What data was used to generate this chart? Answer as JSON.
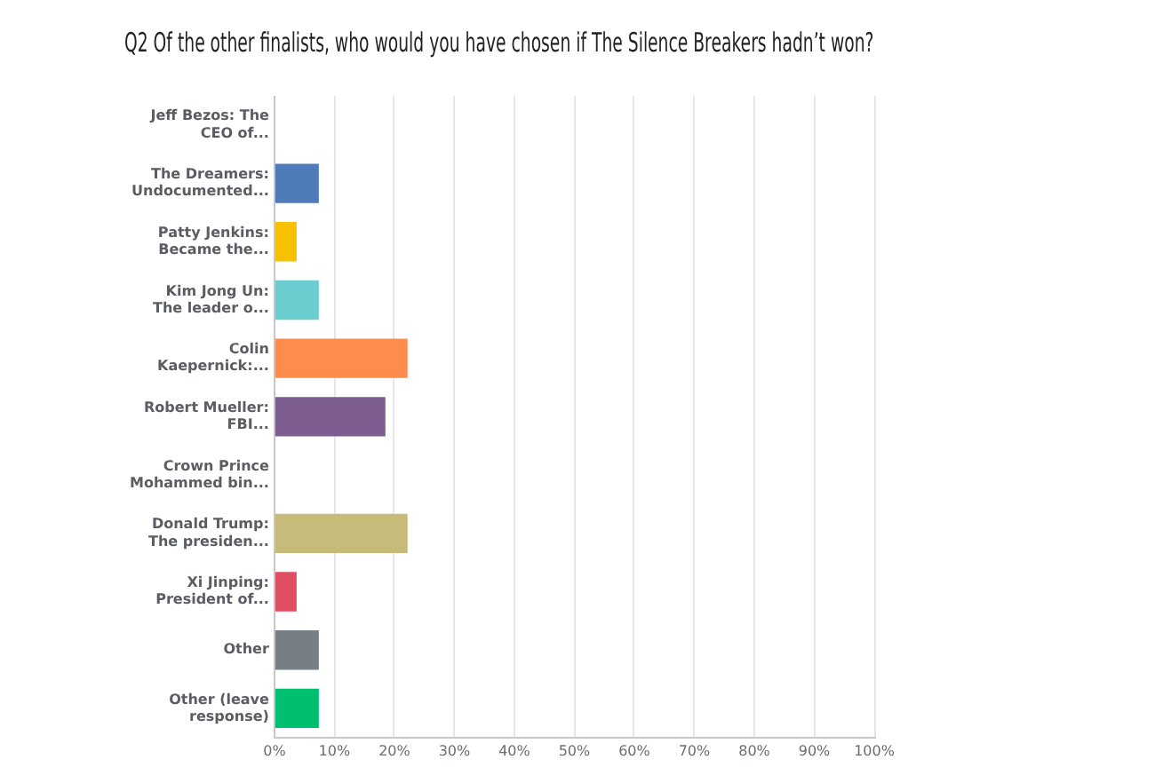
{
  "chart_data": {
    "type": "bar",
    "orientation": "horizontal",
    "title": "Q2 Of the other finalists, who would you have chosen if The Silence Breakers hadn’t won?",
    "categories": [
      "Jeff Bezos: The CEO of...",
      "The Dreamers: Undocumented...",
      "Patty Jenkins: Became the...",
      "Kim Jong Un: The leader o...",
      "Colin Kaepernick:...",
      "Robert Mueller: FBI...",
      "Crown Prince Mohammed bin...",
      "Donald Trump: The presiden...",
      "Xi Jinping: President of...",
      "Other",
      "Other (leave response)"
    ],
    "values": [
      0,
      7.4,
      3.7,
      7.4,
      22.2,
      18.5,
      0,
      22.2,
      3.7,
      7.4,
      7.4
    ],
    "colors": [
      "#4f7bba",
      "#4f7bba",
      "#f7c000",
      "#6bcdcf",
      "#ff8c4f",
      "#7d5d8f",
      "#a2a2a2",
      "#c7bb7a",
      "#e04e62",
      "#767f86",
      "#00bf6f"
    ],
    "xlim": [
      0,
      100
    ],
    "xticks": [
      {
        "value": 0,
        "label": "0%"
      },
      {
        "value": 10,
        "label": "10%"
      },
      {
        "value": 20,
        "label": "20%"
      },
      {
        "value": 30,
        "label": "30%"
      },
      {
        "value": 40,
        "label": "40%"
      },
      {
        "value": 50,
        "label": "50%"
      },
      {
        "value": 60,
        "label": "60%"
      },
      {
        "value": 70,
        "label": "70%"
      },
      {
        "value": 80,
        "label": "80%"
      },
      {
        "value": 90,
        "label": "90%"
      },
      {
        "value": 100,
        "label": "100%"
      }
    ],
    "grid": "x",
    "legend": false
  }
}
